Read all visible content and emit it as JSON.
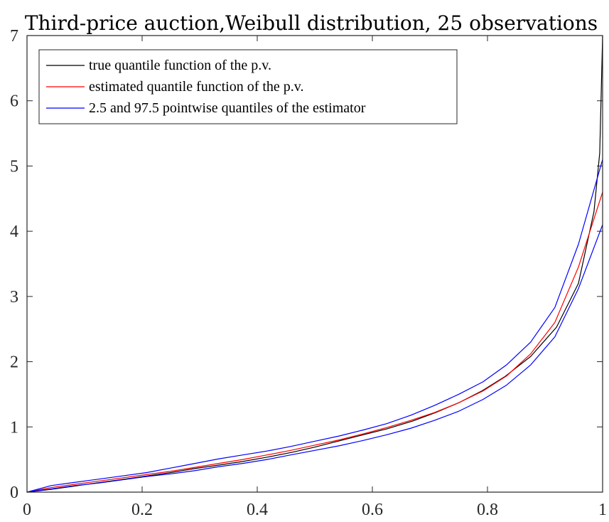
{
  "chart_data": {
    "type": "line",
    "title": "Third-price auction,Weibull distribution, 25 observations",
    "xlabel": "",
    "ylabel": "",
    "xlim": [
      0,
      1
    ],
    "ylim": [
      0,
      7
    ],
    "xticks": [
      0,
      0.2,
      0.4,
      0.6,
      0.8,
      1
    ],
    "xtick_labels": [
      "0",
      "0.2",
      "0.4",
      "0.6",
      "0.8",
      "1"
    ],
    "yticks": [
      0,
      1,
      2,
      3,
      4,
      5,
      6,
      7
    ],
    "ytick_labels": [
      "0",
      "1",
      "2",
      "3",
      "4",
      "5",
      "6",
      "7"
    ],
    "grid": false,
    "legend_position": "top-left",
    "series": [
      {
        "name": "true quantile function of the p.v.",
        "color": "#000000",
        "x": [
          0,
          0.04,
          0.08,
          0.12,
          0.17,
          0.21,
          0.25,
          0.29,
          0.33,
          0.375,
          0.42,
          0.46,
          0.5,
          0.54,
          0.58,
          0.625,
          0.67,
          0.71,
          0.75,
          0.79,
          0.83,
          0.875,
          0.92,
          0.958,
          0.985,
          0.995,
          1.0
        ],
        "values": [
          0,
          0.04,
          0.09,
          0.14,
          0.2,
          0.25,
          0.3,
          0.36,
          0.41,
          0.47,
          0.54,
          0.61,
          0.69,
          0.78,
          0.87,
          0.97,
          1.09,
          1.22,
          1.37,
          1.55,
          1.77,
          2.08,
          2.53,
          3.2,
          4.3,
          5.2,
          7.0
        ]
      },
      {
        "name": "estimated quantile function of the p.v.",
        "color": "#ff0000",
        "x": [
          0,
          0.042,
          0.083,
          0.125,
          0.167,
          0.208,
          0.25,
          0.292,
          0.333,
          0.375,
          0.417,
          0.458,
          0.5,
          0.542,
          0.583,
          0.625,
          0.667,
          0.708,
          0.75,
          0.792,
          0.833,
          0.875,
          0.917,
          0.958,
          1.0
        ],
        "values": [
          0,
          0.07,
          0.12,
          0.17,
          0.22,
          0.27,
          0.32,
          0.38,
          0.44,
          0.5,
          0.57,
          0.64,
          0.72,
          0.8,
          0.89,
          0.99,
          1.1,
          1.22,
          1.37,
          1.55,
          1.78,
          2.12,
          2.6,
          3.45,
          4.6
        ]
      },
      {
        "name": "2.5 and 97.5 pointwise quantiles of the estimator",
        "color": "#0000ff",
        "x": [
          0,
          0.042,
          0.083,
          0.125,
          0.167,
          0.208,
          0.25,
          0.292,
          0.333,
          0.375,
          0.417,
          0.458,
          0.5,
          0.542,
          0.583,
          0.625,
          0.667,
          0.708,
          0.75,
          0.792,
          0.833,
          0.875,
          0.917,
          0.958,
          1.0
        ],
        "values": [
          0,
          0.1,
          0.15,
          0.2,
          0.25,
          0.3,
          0.37,
          0.44,
          0.51,
          0.57,
          0.63,
          0.7,
          0.78,
          0.86,
          0.95,
          1.05,
          1.18,
          1.33,
          1.5,
          1.69,
          1.95,
          2.3,
          2.83,
          3.8,
          5.1
        ]
      },
      {
        "name": "",
        "color": "#0000ff",
        "x": [
          0,
          0.042,
          0.083,
          0.125,
          0.167,
          0.208,
          0.25,
          0.292,
          0.333,
          0.375,
          0.417,
          0.458,
          0.5,
          0.542,
          0.583,
          0.625,
          0.667,
          0.708,
          0.75,
          0.792,
          0.833,
          0.875,
          0.917,
          0.958,
          1.0
        ],
        "values": [
          0,
          0.05,
          0.1,
          0.14,
          0.19,
          0.24,
          0.28,
          0.33,
          0.39,
          0.44,
          0.5,
          0.57,
          0.64,
          0.71,
          0.79,
          0.88,
          0.98,
          1.1,
          1.24,
          1.42,
          1.64,
          1.95,
          2.38,
          3.12,
          4.1
        ]
      }
    ]
  }
}
